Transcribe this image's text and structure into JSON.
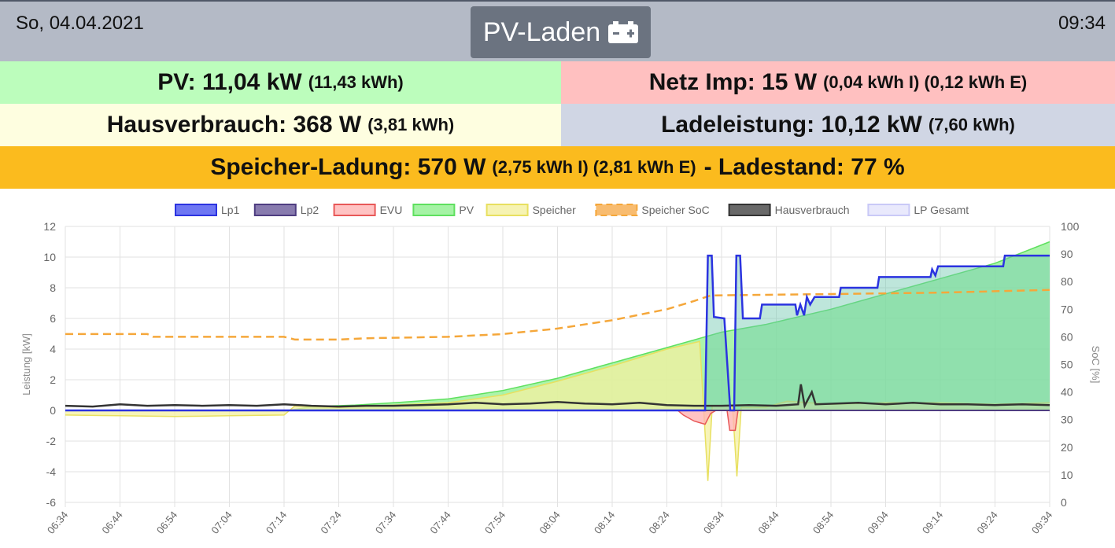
{
  "header": {
    "date": "So, 04.04.2021",
    "time": "09:34",
    "mode_label": "PV-Laden",
    "mode_icon": "battery-charging-icon"
  },
  "summary": {
    "pv": {
      "main": "PV: 11,04 kW",
      "sub": "(11,43 kWh)"
    },
    "evu": {
      "main": "Netz Imp: 15 W",
      "sub": "(0,04 kWh I) (0,12 kWh E)"
    },
    "haus": {
      "main": "Hausverbrauch: 368 W",
      "sub": "(3,81 kWh)"
    },
    "lade": {
      "main": "Ladeleistung: 10,12 kW",
      "sub": "(7,60 kWh)"
    },
    "speicher": {
      "main": "Speicher-Ladung: 570 W",
      "sub": "(2,75 kWh I) (2,81 kWh E)",
      "soc": "- Ladestand: 77 %"
    }
  },
  "colors": {
    "header_bg": "#b4bac6",
    "mode_button_bg": "#6b7380",
    "pv_bg": "#bcfdbc",
    "evu_bg": "#ffc0c0",
    "haus_bg": "#fefee0",
    "lade_bg": "#d0d6e4",
    "speicher_bg": "#fbbb1e"
  },
  "chart_data": {
    "type": "line",
    "xlabel": "",
    "ylabel": "Leistung [kW]",
    "y2label": "SoC [%]",
    "ylim": [
      -6,
      12
    ],
    "y2lim": [
      0,
      100
    ],
    "yticks": [
      "-6",
      "-4",
      "-2",
      "0",
      "2",
      "4",
      "6",
      "8",
      "10",
      "12"
    ],
    "y2ticks": [
      "0",
      "10",
      "20",
      "30",
      "40",
      "50",
      "60",
      "70",
      "80",
      "90",
      "100"
    ],
    "x": [
      "06:34",
      "06:44",
      "06:54",
      "07:04",
      "07:14",
      "07:24",
      "07:34",
      "07:44",
      "07:54",
      "08:04",
      "08:14",
      "08:24",
      "08:34",
      "08:44",
      "08:54",
      "09:04",
      "09:14",
      "09:24",
      "09:34"
    ],
    "legend_position": "top",
    "grid": true,
    "series": [
      {
        "name": "Lp1",
        "color": "#2b33e0",
        "fill": "#4a55f0",
        "axis": "left",
        "style": "line",
        "points": [
          [
            0,
            0
          ],
          [
            117,
            0
          ],
          [
            117.5,
            10.1
          ],
          [
            118.2,
            10.1
          ],
          [
            118.6,
            6.1
          ],
          [
            120.5,
            6.0
          ],
          [
            121.6,
            0
          ],
          [
            122.3,
            0
          ],
          [
            122.7,
            10.1
          ],
          [
            123.4,
            10.1
          ],
          [
            123.9,
            6.0
          ],
          [
            127,
            6.0
          ],
          [
            127.4,
            6.9
          ],
          [
            133.5,
            6.9
          ],
          [
            133.8,
            6.2
          ],
          [
            134.4,
            6.9
          ],
          [
            135.1,
            6.2
          ],
          [
            135.6,
            7.4
          ],
          [
            136.2,
            6.9
          ],
          [
            137,
            7.4
          ],
          [
            141.5,
            7.4
          ],
          [
            141.8,
            8.0
          ],
          [
            148.5,
            8.0
          ],
          [
            148.8,
            8.7
          ],
          [
            158.2,
            8.7
          ],
          [
            158.5,
            9.2
          ],
          [
            159.1,
            8.8
          ],
          [
            159.6,
            9.4
          ],
          [
            171.5,
            9.4
          ],
          [
            171.8,
            10.1
          ],
          [
            180,
            10.1
          ]
        ]
      },
      {
        "name": "Lp2",
        "color": "#4e3d80",
        "fill": "#6a5a9a",
        "axis": "left",
        "style": "line",
        "points": [
          [
            0,
            0
          ],
          [
            180,
            0
          ]
        ]
      },
      {
        "name": "EVU",
        "color": "#e85858",
        "fill": "#ffb4b4",
        "axis": "left",
        "style": "area",
        "points": [
          [
            0,
            0
          ],
          [
            112,
            0
          ],
          [
            113,
            -0.3
          ],
          [
            115,
            -0.7
          ],
          [
            117,
            -0.9
          ],
          [
            118,
            -0.2
          ],
          [
            119,
            0
          ],
          [
            121,
            0
          ],
          [
            121.5,
            -1.3
          ],
          [
            122.5,
            -1.3
          ],
          [
            123,
            0
          ],
          [
            180,
            0
          ]
        ]
      },
      {
        "name": "PV",
        "color": "#5fe05f",
        "fill": "#8ff08f",
        "axis": "left",
        "style": "area",
        "points": [
          [
            0,
            0
          ],
          [
            41,
            0
          ],
          [
            45,
            0.25
          ],
          [
            53,
            0.35
          ],
          [
            60,
            0.5
          ],
          [
            70,
            0.75
          ],
          [
            80,
            1.3
          ],
          [
            90,
            2.1
          ],
          [
            100,
            3.1
          ],
          [
            110,
            4.1
          ],
          [
            115,
            4.6
          ],
          [
            120,
            5.1
          ],
          [
            128,
            5.6
          ],
          [
            140,
            6.6
          ],
          [
            150,
            7.6
          ],
          [
            160,
            8.6
          ],
          [
            170,
            9.6
          ],
          [
            180,
            11.0
          ]
        ]
      },
      {
        "name": "Speicher",
        "color": "#e8e060",
        "fill": "#f4f0a0",
        "axis": "left",
        "style": "area",
        "points": [
          [
            0,
            -0.3
          ],
          [
            10,
            -0.35
          ],
          [
            20,
            -0.4
          ],
          [
            30,
            -0.35
          ],
          [
            40,
            -0.3
          ],
          [
            42,
            0.3
          ],
          [
            50,
            0.2
          ],
          [
            60,
            0.35
          ],
          [
            70,
            0.5
          ],
          [
            80,
            1.0
          ],
          [
            90,
            1.9
          ],
          [
            100,
            2.9
          ],
          [
            110,
            4.0
          ],
          [
            116,
            4.5
          ],
          [
            117.5,
            -4.6
          ],
          [
            118.3,
            0.3
          ],
          [
            122,
            0.3
          ],
          [
            122.8,
            -4.3
          ],
          [
            123.6,
            0.2
          ],
          [
            128,
            0.2
          ],
          [
            132,
            0.6
          ],
          [
            136,
            0.5
          ],
          [
            140,
            0.4
          ],
          [
            150,
            0.5
          ],
          [
            160,
            0.5
          ],
          [
            170,
            0.4
          ],
          [
            180,
            0.5
          ]
        ]
      },
      {
        "name": "Speicher SoC",
        "color": "#f5a73a",
        "fill": "#f7b560",
        "axis": "right",
        "style": "dashed",
        "points": [
          [
            0,
            61
          ],
          [
            15,
            61
          ],
          [
            16,
            60
          ],
          [
            40,
            60
          ],
          [
            42,
            59
          ],
          [
            50,
            59
          ],
          [
            55,
            59.5
          ],
          [
            70,
            60
          ],
          [
            80,
            61
          ],
          [
            90,
            63
          ],
          [
            100,
            66
          ],
          [
            110,
            70
          ],
          [
            115,
            73
          ],
          [
            118,
            75
          ],
          [
            140,
            75.5
          ],
          [
            160,
            76
          ],
          [
            180,
            77
          ]
        ]
      },
      {
        "name": "Hausverbrauch",
        "color": "#333333",
        "fill": "#444444",
        "axis": "left",
        "style": "line",
        "points": [
          [
            0,
            0.3
          ],
          [
            5,
            0.25
          ],
          [
            10,
            0.4
          ],
          [
            15,
            0.3
          ],
          [
            20,
            0.35
          ],
          [
            25,
            0.3
          ],
          [
            30,
            0.35
          ],
          [
            35,
            0.3
          ],
          [
            40,
            0.4
          ],
          [
            45,
            0.3
          ],
          [
            50,
            0.25
          ],
          [
            55,
            0.3
          ],
          [
            60,
            0.3
          ],
          [
            65,
            0.35
          ],
          [
            70,
            0.4
          ],
          [
            75,
            0.5
          ],
          [
            80,
            0.4
          ],
          [
            85,
            0.45
          ],
          [
            90,
            0.55
          ],
          [
            95,
            0.45
          ],
          [
            100,
            0.4
          ],
          [
            105,
            0.5
          ],
          [
            110,
            0.35
          ],
          [
            115,
            0.3
          ],
          [
            120,
            0.3
          ],
          [
            125,
            0.35
          ],
          [
            130,
            0.3
          ],
          [
            134,
            0.4
          ],
          [
            134.5,
            1.7
          ],
          [
            135.2,
            0.3
          ],
          [
            136.5,
            1.2
          ],
          [
            137.2,
            0.4
          ],
          [
            145,
            0.5
          ],
          [
            150,
            0.4
          ],
          [
            155,
            0.5
          ],
          [
            160,
            0.4
          ],
          [
            165,
            0.4
          ],
          [
            170,
            0.35
          ],
          [
            175,
            0.4
          ],
          [
            180,
            0.35
          ]
        ]
      },
      {
        "name": "LP Gesamt",
        "color": "#c9c9f7",
        "fill": "#e3e3fb",
        "axis": "left",
        "style": "hidden",
        "points": []
      }
    ]
  }
}
